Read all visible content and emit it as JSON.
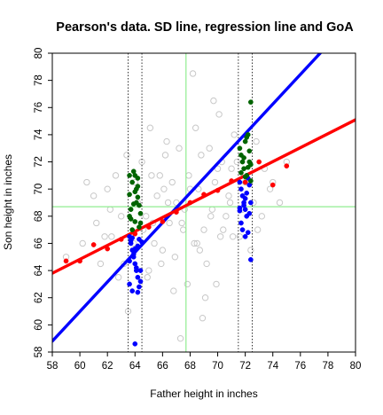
{
  "chart_data": {
    "type": "scatter",
    "title": "Pearson's data. SD line, regression line and GoA",
    "xlabel": "Father height in inches",
    "ylabel": "Son height in inches",
    "xlim": [
      58,
      80
    ],
    "ylim": [
      58,
      80
    ],
    "xticks": [
      58,
      60,
      62,
      64,
      66,
      68,
      70,
      72,
      74,
      76,
      78,
      80
    ],
    "yticks": [
      58,
      60,
      62,
      64,
      66,
      68,
      70,
      72,
      74,
      76,
      78,
      80
    ],
    "grid": false,
    "reference_lines": {
      "mean_father_x": 67.7,
      "mean_son_y": 68.7,
      "dotted_vertical_x": [
        63.5,
        64.5,
        71.5,
        72.5
      ]
    },
    "lines": [
      {
        "role": "sd-line",
        "color": "#0000ff",
        "from": [
          58,
          58.8
        ],
        "to": [
          80,
          82.8
        ]
      },
      {
        "role": "regression-line",
        "color": "#ff0000",
        "from": [
          58,
          63.8
        ],
        "to": [
          80,
          75.1
        ]
      }
    ],
    "series": [
      {
        "role": "background-scatter",
        "color": "#c8c8c8",
        "marker": "open-circle",
        "x": [
          59.0,
          60.2,
          61.0,
          61.5,
          62.0,
          62.3,
          62.8,
          63.0,
          63.5,
          64.0,
          64.5,
          65.0,
          65.3,
          65.8,
          66.0,
          66.4,
          66.8,
          67.2,
          67.5,
          68.0,
          68.3,
          68.8,
          69.2,
          69.6,
          70.0,
          70.4,
          70.8,
          71.2,
          71.6,
          72.0,
          72.4,
          72.8,
          73.2,
          73.8,
          74.5,
          75.0,
          61.2,
          62.6,
          63.9,
          64.9,
          65.6,
          66.2,
          66.9,
          67.6,
          68.4,
          69.0,
          69.8,
          70.6,
          71.4,
          72.6,
          73.4,
          60.5,
          61.8,
          63.2,
          64.2,
          65.2,
          66.5,
          67.8,
          68.6,
          69.4,
          70.2,
          71.0,
          71.8,
          72.9,
          74.0,
          62.2,
          63.4,
          64.6,
          65.4,
          66.1,
          67.0,
          67.9,
          68.7,
          69.5,
          70.3,
          71.1,
          64.8,
          65.9,
          66.7,
          67.4,
          68.2,
          69.1,
          70.1,
          70.9,
          68.9,
          69.7,
          66.3,
          65.1,
          67.3,
          68.5,
          69.9
        ],
        "y": [
          65.0,
          66.0,
          69.5,
          64.5,
          70.0,
          66.5,
          63.5,
          68.0,
          61.0,
          70.5,
          72.0,
          64.0,
          67.5,
          71.0,
          65.5,
          69.0,
          62.5,
          73.0,
          67.0,
          70.0,
          66.0,
          72.5,
          64.5,
          68.5,
          71.5,
          67.0,
          69.5,
          74.0,
          66.5,
          70.5,
          65.5,
          73.5,
          68.0,
          70.0,
          69.0,
          72.0,
          67.5,
          71.0,
          66.0,
          63.5,
          69.5,
          72.5,
          65.0,
          68.5,
          74.5,
          67.0,
          70.5,
          68.0,
          72.0,
          69.0,
          71.5,
          70.5,
          66.5,
          64.5,
          69.0,
          71.0,
          67.5,
          63.0,
          70.0,
          73.0,
          66.5,
          71.5,
          68.5,
          67.0,
          70.5,
          68.5,
          72.5,
          67.0,
          66.0,
          70.0,
          69.0,
          71.0,
          65.5,
          68.0,
          72.0,
          66.5,
          68.0,
          64.5,
          70.5,
          67.5,
          78.5,
          62.0,
          75.5,
          69.0,
          60.5,
          76.5,
          73.5,
          74.5,
          59.0,
          66.0,
          63.0
        ]
      },
      {
        "role": "goa-below",
        "color": "#0000ff",
        "marker": "filled-circle",
        "x": [
          63.6,
          63.7,
          63.8,
          63.9,
          64.0,
          64.1,
          64.2,
          64.3,
          63.6,
          63.8,
          64.0,
          64.2,
          64.4,
          63.7,
          63.9,
          64.1,
          64.3,
          63.6,
          64.0,
          64.4,
          63.8,
          64.2,
          64.5,
          71.6,
          71.7,
          71.8,
          71.9,
          72.0,
          72.1,
          72.2,
          72.3,
          72.4,
          71.7,
          71.9,
          72.1,
          72.3,
          71.6,
          72.0,
          72.4,
          71.8,
          72.2,
          71.6,
          72.0
        ],
        "y": [
          66.5,
          66.0,
          65.5,
          65.0,
          64.5,
          64.0,
          63.5,
          66.3,
          63.0,
          62.5,
          58.6,
          65.8,
          63.2,
          66.2,
          65.2,
          64.2,
          62.8,
          64.7,
          65.6,
          64.0,
          66.4,
          62.4,
          66.1,
          70.5,
          70.0,
          69.5,
          69.0,
          68.5,
          68.0,
          70.8,
          68.2,
          69.0,
          67.5,
          68.8,
          69.7,
          70.3,
          68.6,
          66.5,
          64.8,
          67.0,
          66.8,
          68.4,
          69.3
        ]
      },
      {
        "role": "goa-above",
        "color": "#006400",
        "marker": "filled-circle",
        "x": [
          63.6,
          63.7,
          63.8,
          63.9,
          64.0,
          64.1,
          64.2,
          64.3,
          64.4,
          63.6,
          63.8,
          64.0,
          64.2,
          64.4,
          63.7,
          63.9,
          64.1,
          64.3,
          63.6,
          64.0,
          64.2,
          71.6,
          71.7,
          71.8,
          71.9,
          72.0,
          72.1,
          72.2,
          72.3,
          72.4,
          71.7,
          71.9,
          72.1,
          72.3,
          72.4,
          72.0,
          72.2,
          72.4
        ],
        "y": [
          69.6,
          68.5,
          70.5,
          71.3,
          71.0,
          69.0,
          70.2,
          68.8,
          67.5,
          68.0,
          67.0,
          69.8,
          70.8,
          68.2,
          67.8,
          68.9,
          70.0,
          67.2,
          71.0,
          67.6,
          69.4,
          73.0,
          72.5,
          72.0,
          71.5,
          73.5,
          71.0,
          74.0,
          72.8,
          76.4,
          71.2,
          72.3,
          73.8,
          72.0,
          71.8,
          70.9,
          71.6,
          70.6
        ]
      },
      {
        "role": "bin-means",
        "color": "#ff0000",
        "marker": "filled-circle",
        "x": [
          59.0,
          60.0,
          61.0,
          62.0,
          63.0,
          64.0,
          65.0,
          66.0,
          67.0,
          68.0,
          69.0,
          70.0,
          71.0,
          72.0,
          73.0,
          74.0,
          75.0
        ],
        "y": [
          64.7,
          64.7,
          65.9,
          65.6,
          66.3,
          66.7,
          67.2,
          67.6,
          68.3,
          69.0,
          69.6,
          69.9,
          70.6,
          70.5,
          72.0,
          70.3,
          71.7
        ]
      }
    ]
  }
}
